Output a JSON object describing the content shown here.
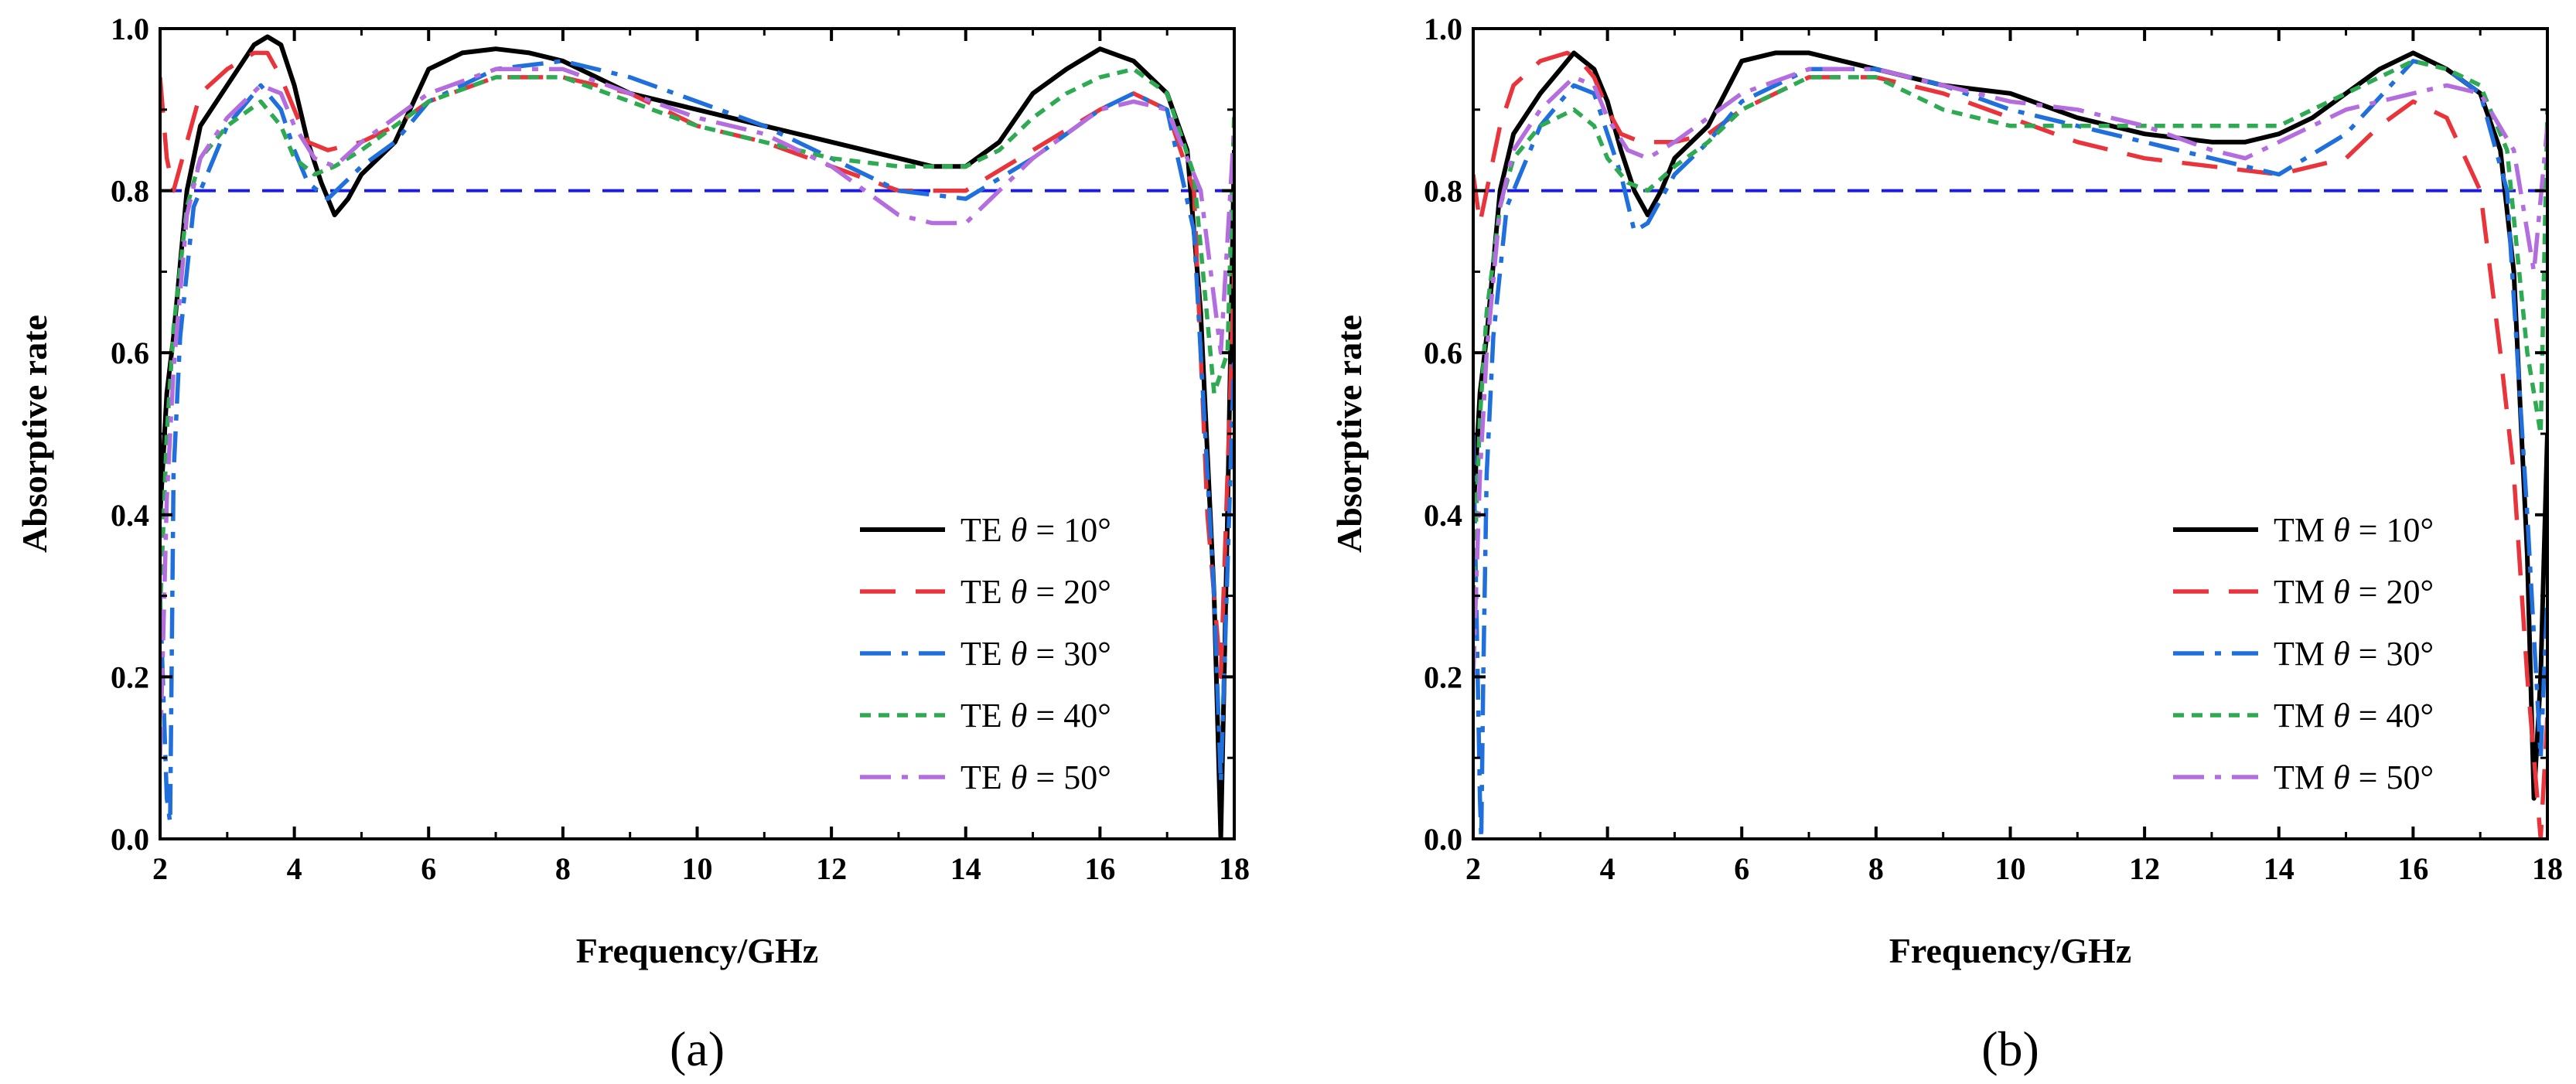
{
  "colors": {
    "s10": "#000000",
    "s20": "#e8343a",
    "s30": "#1f6fdc",
    "s40": "#2eaa52",
    "s50": "#b36ddf",
    "threshold": "#1a1aee"
  },
  "chart_data": [
    {
      "type": "line",
      "panel_label": "(a)",
      "xlabel": "Frequency/GHz",
      "ylabel": "Absorptive rate",
      "xlim": [
        2,
        18
      ],
      "ylim": [
        0.0,
        1.0
      ],
      "xticks": [
        "2",
        "4",
        "6",
        "8",
        "10",
        "12",
        "14",
        "16",
        "18"
      ],
      "yticks": [
        "0.0",
        "0.2",
        "0.4",
        "0.6",
        "0.8",
        "1.0"
      ],
      "reference_line": {
        "y": 0.8,
        "style": "dashed"
      },
      "legend_position": "bottom-right",
      "series": [
        {
          "name": "TE  θ = 10°",
          "mode": "TE",
          "angle": "θ = 10°",
          "style": "solid",
          "color_key": "s10",
          "x": [
            2.0,
            2.1,
            2.2,
            2.4,
            2.6,
            3.0,
            3.4,
            3.6,
            3.8,
            4.0,
            4.2,
            4.4,
            4.6,
            4.8,
            5.0,
            5.5,
            6.0,
            6.5,
            7.0,
            7.5,
            8.0,
            9.0,
            10.0,
            11.0,
            12.0,
            13.0,
            13.5,
            14.0,
            14.5,
            15.0,
            15.5,
            16.0,
            16.5,
            17.0,
            17.3,
            17.5,
            17.7,
            17.8,
            17.9,
            18.0
          ],
          "y": [
            0.4,
            0.55,
            0.62,
            0.8,
            0.88,
            0.93,
            0.98,
            0.99,
            0.98,
            0.93,
            0.86,
            0.81,
            0.77,
            0.79,
            0.82,
            0.86,
            0.95,
            0.97,
            0.975,
            0.97,
            0.96,
            0.92,
            0.9,
            0.88,
            0.86,
            0.84,
            0.83,
            0.83,
            0.86,
            0.92,
            0.95,
            0.975,
            0.96,
            0.92,
            0.85,
            0.65,
            0.3,
            0.0,
            0.4,
            0.85
          ]
        },
        {
          "name": "TE  θ = 20°",
          "mode": "TE",
          "angle": "θ = 20°",
          "style": "dashed",
          "color_key": "s20",
          "x": [
            2.0,
            2.1,
            2.2,
            2.4,
            2.6,
            3.0,
            3.4,
            3.6,
            3.8,
            4.0,
            4.2,
            4.5,
            5.0,
            5.5,
            6.0,
            7.0,
            8.0,
            9.0,
            10.0,
            11.0,
            12.0,
            13.0,
            14.0,
            15.0,
            16.0,
            16.5,
            17.0,
            17.4,
            17.6,
            17.8,
            18.0
          ],
          "y": [
            0.94,
            0.84,
            0.8,
            0.86,
            0.92,
            0.95,
            0.97,
            0.97,
            0.94,
            0.9,
            0.86,
            0.85,
            0.86,
            0.88,
            0.91,
            0.94,
            0.94,
            0.92,
            0.88,
            0.86,
            0.83,
            0.8,
            0.8,
            0.85,
            0.9,
            0.92,
            0.9,
            0.8,
            0.4,
            0.2,
            0.7
          ]
        },
        {
          "name": "TE  θ = 30°",
          "mode": "TE",
          "angle": "θ = 30°",
          "style": "dashdot",
          "color_key": "s30",
          "x": [
            2.0,
            2.1,
            2.15,
            2.2,
            2.3,
            2.5,
            3.0,
            3.5,
            3.8,
            4.0,
            4.2,
            4.5,
            5.0,
            5.5,
            6.0,
            7.0,
            8.0,
            9.0,
            10.0,
            11.0,
            12.0,
            13.0,
            14.0,
            15.0,
            16.0,
            16.5,
            17.0,
            17.4,
            17.7,
            17.8,
            18.0
          ],
          "y": [
            0.3,
            0.05,
            0.02,
            0.45,
            0.62,
            0.78,
            0.88,
            0.93,
            0.9,
            0.85,
            0.81,
            0.79,
            0.83,
            0.86,
            0.91,
            0.95,
            0.96,
            0.94,
            0.91,
            0.88,
            0.84,
            0.8,
            0.79,
            0.84,
            0.9,
            0.92,
            0.9,
            0.75,
            0.3,
            0.07,
            0.6
          ]
        },
        {
          "name": "TE  θ = 40°",
          "mode": "TE",
          "angle": "θ = 40°",
          "style": "dotted",
          "color_key": "s40",
          "x": [
            2.0,
            2.1,
            2.2,
            2.4,
            2.6,
            3.0,
            3.5,
            3.8,
            4.0,
            4.3,
            4.6,
            5.0,
            5.5,
            6.0,
            7.0,
            8.0,
            9.0,
            10.0,
            11.0,
            12.0,
            13.0,
            14.0,
            14.5,
            15.0,
            15.5,
            16.0,
            16.5,
            17.0,
            17.4,
            17.7,
            17.9,
            18.0
          ],
          "y": [
            0.28,
            0.5,
            0.63,
            0.78,
            0.84,
            0.88,
            0.91,
            0.88,
            0.84,
            0.82,
            0.83,
            0.85,
            0.88,
            0.91,
            0.94,
            0.94,
            0.91,
            0.88,
            0.86,
            0.84,
            0.83,
            0.83,
            0.85,
            0.89,
            0.92,
            0.94,
            0.95,
            0.92,
            0.82,
            0.55,
            0.6,
            0.9
          ]
        },
        {
          "name": "TE  θ = 50°",
          "mode": "TE",
          "angle": "θ = 50°",
          "style": "dashdot",
          "color_key": "s50",
          "x": [
            2.0,
            2.1,
            2.2,
            2.4,
            2.6,
            3.0,
            3.5,
            3.8,
            4.0,
            4.3,
            4.6,
            5.0,
            5.5,
            6.0,
            7.0,
            8.0,
            9.0,
            10.0,
            11.0,
            12.0,
            12.5,
            13.0,
            13.5,
            14.0,
            14.5,
            15.0,
            16.0,
            16.5,
            17.0,
            17.5,
            17.8,
            18.0
          ],
          "y": [
            0.1,
            0.42,
            0.58,
            0.77,
            0.84,
            0.89,
            0.93,
            0.92,
            0.88,
            0.84,
            0.83,
            0.86,
            0.89,
            0.92,
            0.95,
            0.95,
            0.92,
            0.89,
            0.87,
            0.83,
            0.8,
            0.77,
            0.76,
            0.76,
            0.8,
            0.84,
            0.9,
            0.91,
            0.9,
            0.8,
            0.6,
            0.88
          ]
        }
      ]
    },
    {
      "type": "line",
      "panel_label": "(b)",
      "xlabel": "Frequency/GHz",
      "ylabel": "Absorptive rate",
      "xlim": [
        2,
        18
      ],
      "ylim": [
        0.0,
        1.0
      ],
      "xticks": [
        "2",
        "4",
        "6",
        "8",
        "10",
        "12",
        "14",
        "16",
        "18"
      ],
      "yticks": [
        "0.0",
        "0.2",
        "0.4",
        "0.6",
        "0.8",
        "1.0"
      ],
      "reference_line": {
        "y": 0.8,
        "style": "dashed"
      },
      "legend_position": "bottom-right",
      "series": [
        {
          "name": "TM  θ = 10°",
          "mode": "TM",
          "angle": "θ = 10°",
          "style": "solid",
          "color_key": "s10",
          "x": [
            2.0,
            2.1,
            2.2,
            2.4,
            2.6,
            3.0,
            3.3,
            3.5,
            3.8,
            4.0,
            4.2,
            4.4,
            4.6,
            4.8,
            5.0,
            5.5,
            6.0,
            6.5,
            7.0,
            7.5,
            8.0,
            9.0,
            10.0,
            11.0,
            12.0,
            13.0,
            13.5,
            14.0,
            14.5,
            15.0,
            15.5,
            16.0,
            16.5,
            17.0,
            17.3,
            17.5,
            17.7,
            17.8,
            17.9,
            18.0
          ],
          "y": [
            0.4,
            0.55,
            0.62,
            0.8,
            0.87,
            0.92,
            0.95,
            0.97,
            0.95,
            0.91,
            0.85,
            0.8,
            0.77,
            0.8,
            0.84,
            0.88,
            0.96,
            0.97,
            0.97,
            0.96,
            0.95,
            0.93,
            0.92,
            0.89,
            0.87,
            0.86,
            0.86,
            0.87,
            0.89,
            0.92,
            0.95,
            0.97,
            0.95,
            0.92,
            0.85,
            0.7,
            0.35,
            0.05,
            0.2,
            0.5
          ]
        },
        {
          "name": "TM  θ = 20°",
          "mode": "TM",
          "angle": "θ = 20°",
          "style": "dashed",
          "color_key": "s20",
          "x": [
            2.0,
            2.1,
            2.2,
            2.4,
            2.6,
            3.0,
            3.4,
            3.6,
            3.8,
            4.0,
            4.2,
            4.5,
            5.0,
            5.5,
            6.0,
            7.0,
            8.0,
            9.0,
            10.0,
            11.0,
            12.0,
            13.0,
            14.0,
            15.0,
            15.5,
            16.0,
            16.5,
            17.0,
            17.3,
            17.5,
            17.7,
            17.9,
            18.0
          ],
          "y": [
            0.82,
            0.76,
            0.8,
            0.88,
            0.93,
            0.96,
            0.97,
            0.96,
            0.94,
            0.9,
            0.87,
            0.86,
            0.86,
            0.87,
            0.9,
            0.94,
            0.94,
            0.92,
            0.89,
            0.86,
            0.84,
            0.83,
            0.82,
            0.84,
            0.88,
            0.91,
            0.89,
            0.8,
            0.6,
            0.45,
            0.2,
            0.0,
            0.15
          ]
        },
        {
          "name": "TM  θ = 30°",
          "mode": "TM",
          "angle": "θ = 30°",
          "style": "dashdot",
          "color_key": "s30",
          "x": [
            2.0,
            2.1,
            2.12,
            2.15,
            2.2,
            2.3,
            2.5,
            3.0,
            3.5,
            3.8,
            4.0,
            4.2,
            4.4,
            4.6,
            5.0,
            5.5,
            6.0,
            7.0,
            8.0,
            9.0,
            10.0,
            11.0,
            12.0,
            13.0,
            14.0,
            15.0,
            16.0,
            16.5,
            17.0,
            17.4,
            17.7,
            17.9,
            18.0
          ],
          "y": [
            0.5,
            0.05,
            0.0,
            0.2,
            0.45,
            0.62,
            0.78,
            0.88,
            0.93,
            0.92,
            0.87,
            0.82,
            0.75,
            0.76,
            0.82,
            0.86,
            0.91,
            0.95,
            0.95,
            0.93,
            0.9,
            0.88,
            0.86,
            0.84,
            0.82,
            0.87,
            0.96,
            0.95,
            0.92,
            0.8,
            0.4,
            0.1,
            0.3
          ]
        },
        {
          "name": "TM  θ = 40°",
          "mode": "TM",
          "angle": "θ = 40°",
          "style": "dotted",
          "color_key": "s40",
          "x": [
            2.0,
            2.1,
            2.2,
            2.4,
            2.6,
            3.0,
            3.5,
            3.8,
            4.0,
            4.3,
            4.6,
            5.0,
            5.5,
            6.0,
            7.0,
            8.0,
            9.0,
            10.0,
            11.0,
            12.0,
            13.0,
            14.0,
            14.5,
            15.0,
            15.5,
            16.0,
            16.5,
            17.0,
            17.4,
            17.7,
            17.9,
            18.0
          ],
          "y": [
            0.3,
            0.52,
            0.65,
            0.78,
            0.84,
            0.88,
            0.9,
            0.88,
            0.84,
            0.81,
            0.8,
            0.83,
            0.86,
            0.9,
            0.94,
            0.94,
            0.9,
            0.88,
            0.88,
            0.88,
            0.88,
            0.88,
            0.9,
            0.92,
            0.94,
            0.96,
            0.95,
            0.93,
            0.85,
            0.6,
            0.5,
            0.9
          ]
        },
        {
          "name": "TM  θ = 50°",
          "mode": "TM",
          "angle": "θ = 50°",
          "style": "dashdot",
          "color_key": "s50",
          "x": [
            2.0,
            2.1,
            2.2,
            2.4,
            2.6,
            3.0,
            3.5,
            3.8,
            4.0,
            4.3,
            4.6,
            5.0,
            5.5,
            6.0,
            7.0,
            8.0,
            9.0,
            10.0,
            11.0,
            12.0,
            13.0,
            13.5,
            14.0,
            14.5,
            15.0,
            16.0,
            16.5,
            17.0,
            17.5,
            17.8,
            18.0
          ],
          "y": [
            0.2,
            0.45,
            0.6,
            0.78,
            0.85,
            0.9,
            0.94,
            0.93,
            0.89,
            0.85,
            0.84,
            0.86,
            0.89,
            0.92,
            0.95,
            0.95,
            0.93,
            0.91,
            0.9,
            0.88,
            0.85,
            0.84,
            0.86,
            0.88,
            0.9,
            0.92,
            0.93,
            0.92,
            0.85,
            0.7,
            0.88
          ]
        }
      ]
    }
  ]
}
